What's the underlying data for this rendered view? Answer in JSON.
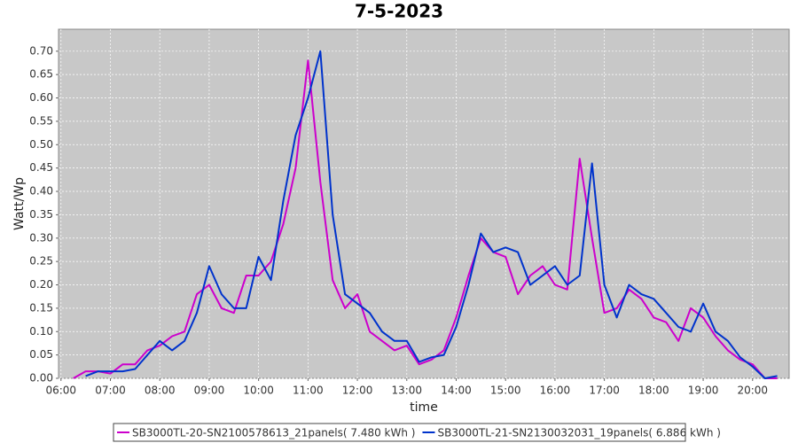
{
  "chart_data": {
    "type": "line",
    "title": "7-5-2023",
    "x_label": "time",
    "y_label": "Watt/Wp",
    "x": [
      6.25,
      6.5,
      6.75,
      7.0,
      7.25,
      7.5,
      7.75,
      8.0,
      8.25,
      8.5,
      8.75,
      9.0,
      9.25,
      9.5,
      9.75,
      10.0,
      10.25,
      10.5,
      10.75,
      11.0,
      11.25,
      11.5,
      11.75,
      12.0,
      12.25,
      12.5,
      12.75,
      13.0,
      13.25,
      13.5,
      13.75,
      14.0,
      14.25,
      14.5,
      14.75,
      15.0,
      15.25,
      15.5,
      15.75,
      16.0,
      16.25,
      16.5,
      16.75,
      17.0,
      17.25,
      17.5,
      17.75,
      18.0,
      18.25,
      18.5,
      18.75,
      19.0,
      19.25,
      19.5,
      19.75,
      20.0,
      20.25,
      20.5
    ],
    "series": [
      {
        "name": "SB3000TL-20-SN2100578613_21panels( 7.480 kWh )",
        "color": "#cc00cc",
        "values": [
          0,
          0.015,
          0.015,
          0.01,
          0.03,
          0.03,
          0.06,
          0.07,
          0.09,
          0.1,
          0.18,
          0.2,
          0.15,
          0.14,
          0.22,
          0.22,
          0.25,
          0.33,
          0.45,
          0.68,
          0.42,
          0.21,
          0.15,
          0.18,
          0.1,
          0.08,
          0.06,
          0.07,
          0.03,
          0.04,
          0.06,
          0.13,
          0.22,
          0.3,
          0.27,
          0.26,
          0.18,
          0.22,
          0.24,
          0.2,
          0.19,
          0.47,
          0.3,
          0.14,
          0.15,
          0.19,
          0.17,
          0.13,
          0.12,
          0.08,
          0.15,
          0.13,
          0.09,
          0.06,
          0.04,
          0.03,
          0,
          0
        ]
      },
      {
        "name": "SB3000TL-21-SN2130032031_19panels( 6.886 kWh )",
        "color": "#0033cc",
        "values": [
          null,
          0.005,
          0.015,
          0.015,
          0.015,
          0.02,
          0.05,
          0.08,
          0.06,
          0.08,
          0.14,
          0.24,
          0.18,
          0.15,
          0.15,
          0.26,
          0.21,
          0.38,
          0.52,
          0.6,
          0.7,
          0.35,
          0.18,
          0.16,
          0.14,
          0.1,
          0.08,
          0.08,
          0.035,
          0.045,
          0.05,
          0.11,
          0.2,
          0.31,
          0.27,
          0.28,
          0.27,
          0.2,
          0.22,
          0.24,
          0.2,
          0.22,
          0.46,
          0.2,
          0.13,
          0.2,
          0.18,
          0.17,
          0.14,
          0.11,
          0.1,
          0.16,
          0.1,
          0.08,
          0.045,
          0.025,
          0,
          0.005
        ]
      }
    ],
    "xlim": [
      5.95,
      20.74
    ],
    "xticks": [
      {
        "value": 6,
        "label": "06:00"
      },
      {
        "value": 7,
        "label": "07:00"
      },
      {
        "value": 8,
        "label": "08:00"
      },
      {
        "value": 9,
        "label": "09:00"
      },
      {
        "value": 10,
        "label": "10:00"
      },
      {
        "value": 11,
        "label": "11:00"
      },
      {
        "value": 12,
        "label": "12:00"
      },
      {
        "value": 13,
        "label": "13:00"
      },
      {
        "value": 14,
        "label": "14:00"
      },
      {
        "value": 15,
        "label": "15:00"
      },
      {
        "value": 16,
        "label": "16:00"
      },
      {
        "value": 17,
        "label": "17:00"
      },
      {
        "value": 18,
        "label": "18:00"
      },
      {
        "value": 19,
        "label": "19:00"
      },
      {
        "value": 20,
        "label": "20:00"
      }
    ],
    "ylim": [
      0,
      0.747
    ],
    "yticks": [
      {
        "value": 0,
        "label": "0.00"
      },
      0.05,
      {
        "value": 0.1,
        "label": "0.10"
      },
      0.15,
      {
        "value": 0.2,
        "label": "0.20"
      },
      0.25,
      {
        "value": 0.3,
        "label": "0.30"
      },
      0.35,
      {
        "value": 0.4,
        "label": "0.40"
      },
      0.45,
      {
        "value": 0.5,
        "label": "0.50"
      },
      0.55,
      {
        "value": 0.6,
        "label": "0.60"
      },
      0.65,
      {
        "value": 0.7,
        "label": "0.70"
      }
    ],
    "grid": true,
    "legend": "bottom"
  }
}
